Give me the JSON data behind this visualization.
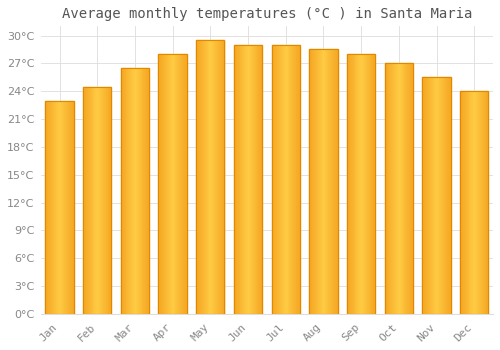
{
  "title": "Average monthly temperatures (°C ) in Santa Maria",
  "months": [
    "Jan",
    "Feb",
    "Mar",
    "Apr",
    "May",
    "Jun",
    "Jul",
    "Aug",
    "Sep",
    "Oct",
    "Nov",
    "Dec"
  ],
  "values": [
    23.0,
    24.5,
    26.5,
    28.0,
    29.5,
    29.0,
    29.0,
    28.5,
    28.0,
    27.0,
    25.5,
    24.0
  ],
  "bar_color_light": "#FFCC44",
  "bar_color_dark": "#F5A623",
  "bar_color_edge": "#E08800",
  "background_color": "#FFFFFF",
  "grid_color": "#DDDDDD",
  "text_color": "#888888",
  "ylim": [
    0,
    31
  ],
  "yticks": [
    0,
    3,
    6,
    9,
    12,
    15,
    18,
    21,
    24,
    27,
    30
  ],
  "title_fontsize": 10,
  "tick_fontsize": 8,
  "figure_bg": "#FFFFFF"
}
